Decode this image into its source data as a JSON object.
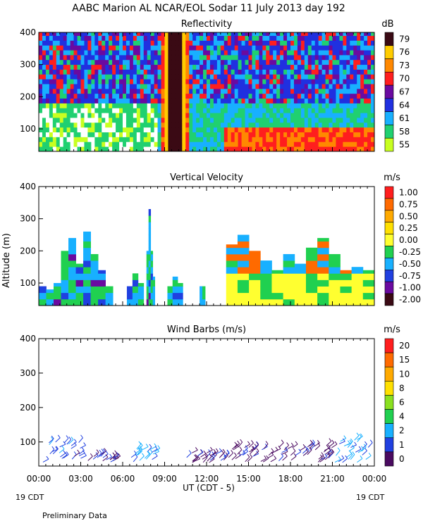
{
  "figure": {
    "title": "AABC Marion AL NCAR/EOL Sodar  11 July 2013 day 192",
    "xaxis_label": "UT  (CDT - 5)",
    "x_ticks": [
      "00:00",
      "03:00",
      "06:00",
      "09:00",
      "12:00",
      "15:00",
      "18:00",
      "21:00",
      "00:00"
    ],
    "date_left": "19 CDT",
    "date_right": "19 CDT",
    "footer": "Preliminary Data"
  },
  "chart_data": [
    {
      "type": "heatmap",
      "title": "Reflectivity",
      "units": "dB",
      "xlabel": "UT (CDT - 5)",
      "ylabel": "",
      "xlim": [
        0,
        24
      ],
      "ylim": [
        30,
        400
      ],
      "y_ticks": [
        100,
        200,
        300,
        400
      ],
      "colorbar_labels": [
        "79",
        "76",
        "73",
        "70",
        "67",
        "64",
        "61",
        "58",
        "55"
      ],
      "colors": [
        "#3a0a14",
        "#ffcc00",
        "#ff8800",
        "#ff1e1e",
        "#6a0aa0",
        "#2030e0",
        "#18b0ff",
        "#20d070",
        "#c8ff20"
      ],
      "features": [
        {
          "name": "low-level green/yellow layer",
          "time": [
            0,
            8.5
          ],
          "altitude": [
            30,
            170
          ],
          "dB": 56
        },
        {
          "name": "high reflectivity event",
          "time": [
            8.6,
            10.6
          ],
          "altitude": [
            30,
            400
          ],
          "dB": 79
        },
        {
          "name": "evening low-level maximum",
          "time": [
            13,
            24
          ],
          "altitude": [
            30,
            100
          ],
          "dB": 70
        }
      ]
    },
    {
      "type": "heatmap",
      "title": "Vertical Velocity",
      "units": "m/s",
      "ylabel": "Altitude (m)",
      "xlim": [
        0,
        24
      ],
      "ylim": [
        30,
        400
      ],
      "y_ticks": [
        100,
        200,
        300,
        400
      ],
      "colorbar_labels": [
        "1.00",
        "0.75",
        "0.50",
        "0.25",
        "0.00",
        "-0.25",
        "-0.50",
        "-0.75",
        "-1.00",
        "-2.00"
      ],
      "colors": [
        "#ff1e1e",
        "#ff6a00",
        "#ffaa00",
        "#ffe000",
        "#ffff30",
        "#20d050",
        "#18b0ff",
        "#2040e0",
        "#6a0aa0",
        "#3a0a14"
      ],
      "segments": [
        {
          "time": [
            0,
            5.3
          ],
          "top": [
            90,
            80,
            100,
            200,
            240,
            160,
            260,
            190,
            140,
            90
          ],
          "value": -0.1
        },
        {
          "time": [
            6.3,
            7.5
          ],
          "top": [
            90,
            130,
            100
          ],
          "value": -0.1
        },
        {
          "time": [
            7.7,
            8.3
          ],
          "top": [
            200,
            330,
            200,
            120
          ],
          "value": -0.3
        },
        {
          "time": [
            9.2,
            10.3
          ],
          "top": [
            90,
            120,
            100
          ],
          "value": -0.1
        },
        {
          "time": [
            11.5,
            11.9
          ],
          "top": [
            90,
            90
          ],
          "value": -0.1
        },
        {
          "time": [
            13.4,
            24
          ],
          "top": [
            220,
            250,
            200,
            170,
            140,
            190,
            160,
            210,
            240,
            190,
            140,
            150,
            140
          ],
          "value": 0.2
        }
      ]
    },
    {
      "type": "scatter",
      "title": "Wind Barbs (m/s)",
      "units": "m/s",
      "xlim": [
        0,
        24
      ],
      "ylim": [
        30,
        400
      ],
      "y_ticks": [
        100,
        200,
        300,
        400
      ],
      "colorbar_labels": [
        "20",
        "15",
        "10",
        "8",
        "6",
        "4",
        "2",
        "1",
        "0"
      ],
      "colors": [
        "#ff1e1e",
        "#ff6a00",
        "#ffaa00",
        "#ffe000",
        "#8ae020",
        "#20d050",
        "#18b0ff",
        "#2040e0",
        "#4a0a60"
      ],
      "barb_groups": [
        {
          "time": [
            0.3,
            3.0
          ],
          "altitude": [
            40,
            100
          ],
          "speed": 1.5
        },
        {
          "time": [
            3.5,
            5.5
          ],
          "altitude": [
            40,
            70
          ],
          "speed": 1.0
        },
        {
          "time": [
            6.5,
            8.6
          ],
          "altitude": [
            40,
            80
          ],
          "speed": 2.5
        },
        {
          "time": [
            10.5,
            13.5
          ],
          "altitude": [
            40,
            70
          ],
          "speed": 1.0
        },
        {
          "time": [
            13.5,
            21.0
          ],
          "altitude": [
            40,
            90
          ],
          "speed": 0.8
        },
        {
          "time": [
            21.0,
            23.8
          ],
          "altitude": [
            40,
            110
          ],
          "speed": 2.0
        }
      ]
    }
  ]
}
